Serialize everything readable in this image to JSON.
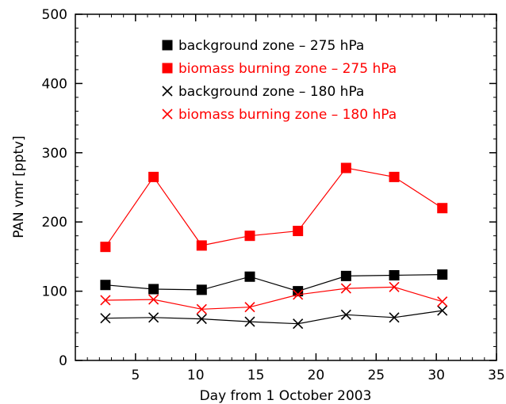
{
  "chart_data": {
    "type": "line",
    "xlabel": "Day from 1 October 2003",
    "ylabel": "PAN vmr [pptv]",
    "xlim": [
      0,
      35
    ],
    "ylim": [
      0,
      500
    ],
    "x_ticks": [
      5,
      10,
      15,
      20,
      25,
      30,
      35
    ],
    "y_ticks": [
      0,
      100,
      200,
      300,
      400,
      500
    ],
    "grid": false,
    "legend_position": "top-center",
    "x": [
      2.5,
      6.5,
      10.5,
      14.5,
      18.5,
      22.5,
      26.5,
      30.5
    ],
    "series": [
      {
        "name": "background zone – 275 hPa",
        "color": "#000000",
        "marker": "filled-square",
        "values": [
          109,
          103,
          102,
          121,
          100,
          122,
          123,
          124
        ]
      },
      {
        "name": "biomass burning zone – 275 hPa",
        "color": "#ff0000",
        "marker": "filled-square",
        "values": [
          164,
          265,
          166,
          180,
          187,
          278,
          265,
          220
        ]
      },
      {
        "name": "background zone – 180 hPa",
        "color": "#000000",
        "marker": "cross",
        "values": [
          61,
          62,
          60,
          56,
          53,
          66,
          62,
          72
        ]
      },
      {
        "name": "biomass burning zone – 180 hPa",
        "color": "#ff0000",
        "marker": "cross",
        "values": [
          87,
          88,
          74,
          77,
          95,
          104,
          106,
          85
        ]
      }
    ]
  }
}
